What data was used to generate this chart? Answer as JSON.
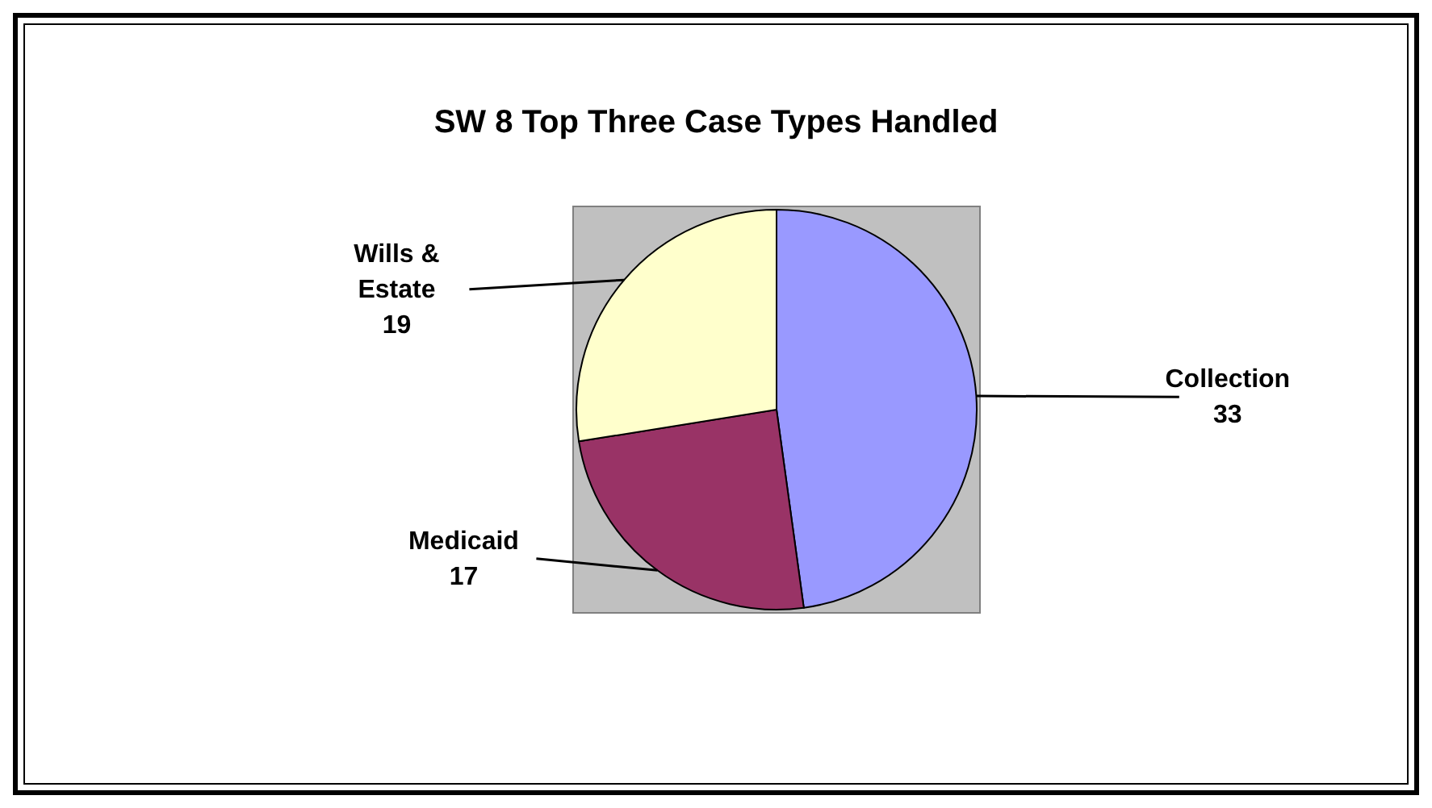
{
  "chart_data": {
    "type": "pie",
    "title": "SW 8 Top Three Case Types Handled",
    "categories": [
      "Collection",
      "Medicaid",
      "Wills & Estate"
    ],
    "values": [
      33,
      17,
      19
    ],
    "colors": [
      "#9999ff",
      "#993366",
      "#ffffcc"
    ],
    "data_labels": true
  }
}
